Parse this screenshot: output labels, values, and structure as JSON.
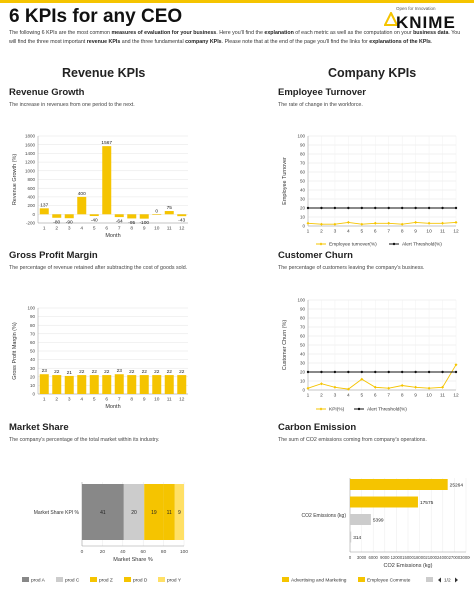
{
  "header": {
    "title": "6 KPIs for any CEO",
    "logo_tagline": "Open for Innovation",
    "logo_word": "KNIME",
    "intro": [
      {
        "t": "The following 6 KPIs are the most common ",
        "b": false
      },
      {
        "t": "measures of evaluation for your business",
        "b": true
      },
      {
        "t": ". Here you'll find the ",
        "b": false
      },
      {
        "t": "explanation",
        "b": true
      },
      {
        "t": " of each metric as well as the computation on your ",
        "b": false
      },
      {
        "t": "business data",
        "b": true
      },
      {
        "t": ". You will find the three most important ",
        "b": false
      },
      {
        "t": "revenue KPIs",
        "b": true
      },
      {
        "t": " and the three fundamental ",
        "b": false
      },
      {
        "t": "company KPIs",
        "b": true
      },
      {
        "t": ". Please note that at the end of the page you'll find the links for ",
        "b": false
      },
      {
        "t": "explanations of the KPIs",
        "b": true
      },
      {
        "t": ".",
        "b": false
      }
    ]
  },
  "columns": {
    "revenue": "Revenue KPIs",
    "company": "Company KPIs"
  },
  "sections": {
    "revenue_growth": {
      "title": "Revenue Growth",
      "desc": "The increase in revenues from one period to the next."
    },
    "employee_turnover": {
      "title": "Employee Turnover",
      "desc": "The rate of change in the workforce."
    },
    "gross_profit": {
      "title": "Gross Profit Margin",
      "desc": "The percentage of revenue retained after subtracting the cost of goods sold."
    },
    "customer_churn": {
      "title": "Customer Churn",
      "desc": "The percentage of customers leaving the company's business."
    },
    "market_share": {
      "title": "Market Share",
      "desc": "The company's percentage of the total market within its industry."
    },
    "carbon": {
      "title": "Carbon Emission",
      "desc": "The sum of CO2 emissions coming from company's operations."
    }
  },
  "colors": {
    "accent": "#f5c400",
    "threshold": "#111111",
    "grey_dark": "#888888",
    "grey_light": "#cccccc",
    "yellow_light": "#ffe066"
  },
  "chart_data": [
    {
      "id": "revenue_growth",
      "type": "bar",
      "categories": [
        "1",
        "2",
        "3",
        "4",
        "5",
        "6",
        "7",
        "8",
        "9",
        "10",
        "11",
        "12"
      ],
      "values": [
        137,
        -80,
        -90,
        400,
        -40,
        1567,
        -64,
        -95,
        -100,
        0,
        75,
        -43
      ],
      "labels": [
        "137",
        "-80",
        "-90",
        "400",
        "-40",
        "1567",
        "-64",
        "-95",
        "-100",
        "0",
        "75",
        "-43"
      ],
      "xlabel": "Month",
      "ylabel": "Revenue Growth (%)",
      "ylim": [
        -200,
        1800
      ],
      "yticks": [
        -200,
        0,
        200,
        400,
        600,
        800,
        1000,
        1200,
        1400,
        1600,
        1800
      ],
      "grid": true
    },
    {
      "id": "employee_turnover",
      "type": "line",
      "x": [
        "1",
        "2",
        "3",
        "4",
        "5",
        "6",
        "7",
        "8",
        "9",
        "10",
        "11",
        "12"
      ],
      "series": [
        {
          "name": "Employee turnover(%)",
          "values": [
            3,
            2,
            2,
            4,
            2,
            3,
            3,
            2,
            4,
            3,
            3,
            4
          ]
        },
        {
          "name": "Alert Threshold(%)",
          "values": [
            20,
            20,
            20,
            20,
            20,
            20,
            20,
            20,
            20,
            20,
            20,
            20
          ]
        }
      ],
      "xlabel": "",
      "ylabel": "Employee Turnover",
      "ylim": [
        0,
        100
      ],
      "yticks": [
        0,
        10,
        20,
        30,
        40,
        50,
        60,
        70,
        80,
        90,
        100
      ],
      "legend": "bottom",
      "grid": true
    },
    {
      "id": "gross_profit",
      "type": "bar",
      "categories": [
        "1",
        "2",
        "3",
        "4",
        "5",
        "6",
        "7",
        "8",
        "9",
        "10",
        "11",
        "12"
      ],
      "values": [
        23,
        22,
        21,
        22,
        22,
        22,
        23,
        22,
        22,
        22,
        22,
        22
      ],
      "labels": [
        "23",
        "22",
        "21",
        "22",
        "22",
        "22",
        "23",
        "22",
        "22",
        "22",
        "22",
        "22"
      ],
      "xlabel": "Month",
      "ylabel": "Gross Profit Margin (%)",
      "ylim": [
        0,
        100
      ],
      "yticks": [
        0,
        10,
        20,
        30,
        40,
        50,
        60,
        70,
        80,
        90,
        100
      ],
      "grid": true
    },
    {
      "id": "customer_churn",
      "type": "line",
      "x": [
        "1",
        "2",
        "3",
        "4",
        "5",
        "6",
        "7",
        "8",
        "9",
        "10",
        "11",
        "12"
      ],
      "series": [
        {
          "name": "KPI(%)",
          "values": [
            2,
            7,
            3,
            1,
            12,
            3,
            2,
            5,
            3,
            2,
            3,
            28
          ]
        },
        {
          "name": "Alert Threshold(%)",
          "values": [
            20,
            20,
            20,
            20,
            20,
            20,
            20,
            20,
            20,
            20,
            20,
            20
          ]
        }
      ],
      "xlabel": "",
      "ylabel": "Customer Churn (%)",
      "ylim": [
        0,
        100
      ],
      "yticks": [
        0,
        10,
        20,
        30,
        40,
        50,
        60,
        70,
        80,
        90,
        100
      ],
      "legend": "bottom",
      "grid": true
    },
    {
      "id": "market_share",
      "type": "bar",
      "orientation": "horizontal-stacked",
      "categories": [
        "Market Share KPI %"
      ],
      "series": [
        {
          "name": "prod A",
          "values": [
            41
          ]
        },
        {
          "name": "prod C",
          "values": [
            20
          ]
        },
        {
          "name": "prod Z",
          "values": [
            19
          ]
        },
        {
          "name": "prod D",
          "values": [
            11
          ]
        },
        {
          "name": "prod Y",
          "values": [
            9
          ]
        }
      ],
      "xlabel": "Market Share %",
      "ylabel": "",
      "xlim": [
        0,
        100
      ],
      "xticks": [
        0,
        20,
        40,
        60,
        80,
        100
      ],
      "legend": "bottom"
    },
    {
      "id": "carbon",
      "type": "bar",
      "orientation": "horizontal-grouped",
      "categories": [
        "CO2 Emissions (kg)"
      ],
      "series": [
        {
          "name": "Advertising and Marketing",
          "values": [
            25264
          ]
        },
        {
          "name": "Employee Commute",
          "values": [
            17575
          ]
        },
        {
          "name": "",
          "values": [
            5399
          ]
        },
        {
          "name": "",
          "values": [
            314
          ]
        }
      ],
      "xlabel": "CO2 Emissions (kg)",
      "ylabel": "",
      "xlim": [
        0,
        30000
      ],
      "xticks": [
        "0",
        "3000",
        "6000",
        "9000",
        "12000",
        "15000",
        "18000",
        "21000",
        "24000",
        "27000",
        "30000"
      ],
      "legend": "bottom",
      "pager": "1/2"
    }
  ]
}
